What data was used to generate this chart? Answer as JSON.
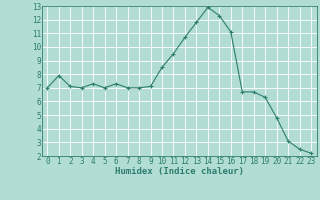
{
  "x": [
    0,
    1,
    2,
    3,
    4,
    5,
    6,
    7,
    8,
    9,
    10,
    11,
    12,
    13,
    14,
    15,
    16,
    17,
    18,
    19,
    20,
    21,
    22,
    23
  ],
  "y": [
    7.0,
    7.9,
    7.1,
    7.0,
    7.3,
    7.0,
    7.3,
    7.0,
    7.0,
    7.1,
    8.5,
    9.5,
    10.7,
    11.8,
    12.9,
    12.3,
    11.1,
    6.7,
    6.7,
    6.3,
    4.8,
    3.1,
    2.5,
    2.2
  ],
  "line_color": "#2e7d6e",
  "marker": "+",
  "marker_size": 3,
  "bg_color": "#b2ddd4",
  "grid_color": "#ffffff",
  "xlabel": "Humidex (Indice chaleur)",
  "xlim": [
    -0.5,
    23.5
  ],
  "ylim": [
    2,
    13
  ],
  "yticks": [
    2,
    3,
    4,
    5,
    6,
    7,
    8,
    9,
    10,
    11,
    12,
    13
  ],
  "xticks": [
    0,
    1,
    2,
    3,
    4,
    5,
    6,
    7,
    8,
    9,
    10,
    11,
    12,
    13,
    14,
    15,
    16,
    17,
    18,
    19,
    20,
    21,
    22,
    23
  ],
  "tick_color": "#2e7d6e",
  "label_color": "#2e7d6e",
  "xlabel_fontsize": 6.5,
  "tick_fontsize": 5.5
}
